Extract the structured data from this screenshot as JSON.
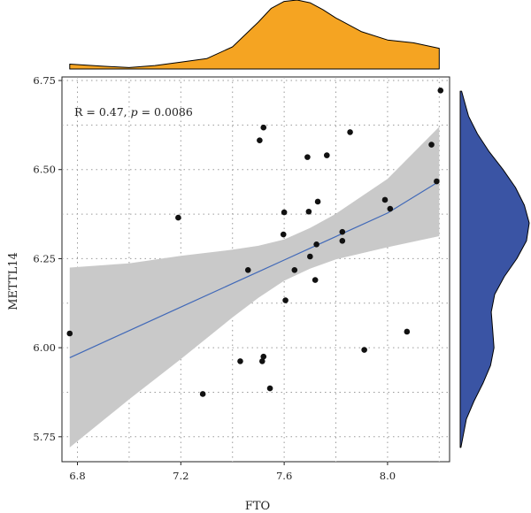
{
  "chart_data": {
    "type": "scatter",
    "xlabel": "FTO",
    "ylabel": "METTL14",
    "annotation": {
      "r_text": "R = 0.47, ",
      "p_symbol": "p",
      "p_value": " = 0.0086"
    },
    "xlim": [
      6.74,
      8.24
    ],
    "ylim": [
      5.68,
      6.76
    ],
    "x_ticks": [
      6.8,
      7.2,
      7.6,
      8.0
    ],
    "x_tick_labels": [
      "6.8",
      "7.2",
      "7.6",
      "8.0"
    ],
    "x_minor_grid": [
      7.0,
      7.4,
      7.8,
      8.2
    ],
    "y_ticks": [
      5.75,
      6.0,
      6.25,
      6.5,
      6.75
    ],
    "y_tick_labels": [
      "5.75",
      "6.00",
      "6.25",
      "6.50",
      "6.75"
    ],
    "y_minor_grid": [
      5.875,
      6.125,
      6.375,
      6.625
    ],
    "grid": true,
    "points": [
      {
        "x": 6.77,
        "y": 6.04
      },
      {
        "x": 7.19,
        "y": 6.365
      },
      {
        "x": 7.285,
        "y": 5.87
      },
      {
        "x": 7.43,
        "y": 5.962
      },
      {
        "x": 7.46,
        "y": 6.218
      },
      {
        "x": 7.505,
        "y": 6.582
      },
      {
        "x": 7.515,
        "y": 5.962
      },
      {
        "x": 7.52,
        "y": 5.975
      },
      {
        "x": 7.52,
        "y": 6.618
      },
      {
        "x": 7.545,
        "y": 5.886
      },
      {
        "x": 7.597,
        "y": 6.318
      },
      {
        "x": 7.6,
        "y": 6.38
      },
      {
        "x": 7.605,
        "y": 6.133
      },
      {
        "x": 7.64,
        "y": 6.218
      },
      {
        "x": 7.69,
        "y": 6.535
      },
      {
        "x": 7.695,
        "y": 6.382
      },
      {
        "x": 7.7,
        "y": 6.256
      },
      {
        "x": 7.72,
        "y": 6.19
      },
      {
        "x": 7.725,
        "y": 6.29
      },
      {
        "x": 7.73,
        "y": 6.41
      },
      {
        "x": 7.765,
        "y": 6.54
      },
      {
        "x": 7.825,
        "y": 6.3
      },
      {
        "x": 7.825,
        "y": 6.325
      },
      {
        "x": 7.855,
        "y": 6.605
      },
      {
        "x": 7.91,
        "y": 5.994
      },
      {
        "x": 7.99,
        "y": 6.415
      },
      {
        "x": 8.01,
        "y": 6.39
      },
      {
        "x": 8.075,
        "y": 6.045
      },
      {
        "x": 8.17,
        "y": 6.57
      },
      {
        "x": 8.19,
        "y": 6.467
      },
      {
        "x": 8.205,
        "y": 6.722
      }
    ],
    "regression": {
      "x": [
        6.77,
        7.0,
        7.2,
        7.4,
        7.5,
        7.6,
        7.7,
        7.8,
        8.0,
        8.2
      ],
      "fit": [
        5.972,
        6.048,
        6.114,
        6.18,
        6.213,
        6.246,
        6.279,
        6.312,
        6.378,
        6.467
      ],
      "lower": [
        5.72,
        5.855,
        5.968,
        6.085,
        6.14,
        6.188,
        6.222,
        6.248,
        6.282,
        6.313
      ],
      "upper": [
        6.225,
        6.237,
        6.258,
        6.275,
        6.286,
        6.304,
        6.336,
        6.376,
        6.474,
        6.62
      ]
    },
    "top_density": {
      "x": [
        6.77,
        6.9,
        7.0,
        7.1,
        7.2,
        7.3,
        7.4,
        7.5,
        7.55,
        7.6,
        7.65,
        7.7,
        7.75,
        7.8,
        7.9,
        8.0,
        8.1,
        8.2
      ],
      "density": [
        0.07,
        0.04,
        0.02,
        0.05,
        0.1,
        0.15,
        0.32,
        0.68,
        0.88,
        0.98,
        1.0,
        0.96,
        0.86,
        0.74,
        0.54,
        0.42,
        0.38,
        0.3
      ],
      "color": "#F5A422"
    },
    "right_density": {
      "y": [
        6.72,
        6.65,
        6.6,
        6.55,
        6.5,
        6.45,
        6.4,
        6.35,
        6.3,
        6.25,
        6.2,
        6.15,
        6.1,
        6.05,
        6.0,
        5.95,
        5.9,
        5.85,
        5.8,
        5.72
      ],
      "density": [
        0.02,
        0.12,
        0.25,
        0.42,
        0.62,
        0.8,
        0.93,
        1.0,
        0.96,
        0.82,
        0.64,
        0.5,
        0.45,
        0.47,
        0.49,
        0.44,
        0.33,
        0.2,
        0.09,
        0.01
      ],
      "color": "#3A54A4"
    },
    "colors": {
      "points": "#111111",
      "fit_line": "#4169B8",
      "band": "#C9C9C9",
      "grid": "#9A9A9A"
    }
  }
}
